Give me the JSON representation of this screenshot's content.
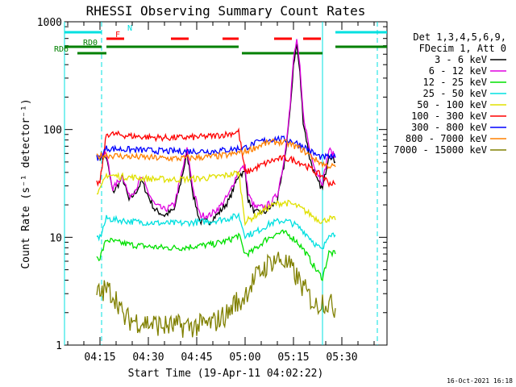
{
  "chart_data": {
    "type": "line",
    "title": "RHESSI Observing Summary Count Rates",
    "xlabel": "Start Time (19-Apr-11 04:02:22)",
    "ylabel": "Count Rate (s⁻¹ detector⁻¹)",
    "yscale": "log",
    "ylim": [
      1,
      1000
    ],
    "xlim_minutes": [
      4,
      104
    ],
    "x_ticks": [
      {
        "min": 15,
        "label": "04:15"
      },
      {
        "min": 30,
        "label": "04:30"
      },
      {
        "min": 45,
        "label": "04:45"
      },
      {
        "min": 60,
        "label": "05:00"
      },
      {
        "min": 75,
        "label": "05:15"
      },
      {
        "min": 90,
        "label": "05:30"
      }
    ],
    "y_ticks": [
      {
        "value": 1,
        "label": "1"
      },
      {
        "value": 10,
        "label": "10"
      },
      {
        "value": 100,
        "label": "100"
      },
      {
        "value": 1000,
        "label": "1000"
      }
    ],
    "legend_header": [
      "Det 1,3,4,5,6,9,",
      "FDecim 1, Att 0"
    ],
    "legend_position": "right",
    "timestamp": "16-Oct-2021 16:18",
    "series": [
      {
        "name": "3 - 6 keV",
        "color": "#000000",
        "x": [
          15,
          17,
          19,
          21,
          22,
          24,
          26,
          28,
          30,
          32,
          35,
          38,
          40,
          42,
          44,
          46,
          49,
          52,
          55,
          58,
          60,
          61,
          63,
          66,
          68,
          70,
          72,
          74,
          75,
          76,
          77,
          78,
          80,
          82,
          84,
          86,
          88
        ],
        "y": [
          55,
          55,
          26,
          32,
          36,
          22,
          26,
          33,
          24,
          18,
          16,
          18,
          32,
          60,
          24,
          14,
          14,
          17,
          22,
          38,
          40,
          22,
          17,
          17,
          19,
          22,
          45,
          150,
          400,
          620,
          330,
          120,
          55,
          35,
          28,
          60,
          50
        ]
      },
      {
        "name": "6 - 12 keV",
        "color": "#e000e0",
        "x": [
          15,
          17,
          19,
          21,
          22,
          24,
          26,
          28,
          30,
          32,
          35,
          38,
          40,
          42,
          44,
          46,
          49,
          52,
          55,
          58,
          60,
          61,
          63,
          66,
          68,
          70,
          72,
          74,
          75,
          76,
          77,
          78,
          80,
          82,
          84,
          86,
          88
        ],
        "y": [
          58,
          58,
          28,
          34,
          38,
          24,
          28,
          36,
          26,
          20,
          18,
          20,
          35,
          65,
          27,
          16,
          16,
          19,
          25,
          42,
          45,
          25,
          19,
          19,
          21,
          25,
          50,
          170,
          450,
          680,
          370,
          140,
          65,
          42,
          32,
          65,
          56
        ]
      },
      {
        "name": "12 - 25 keV",
        "color": "#00e000",
        "x": [
          14,
          15,
          17,
          20,
          25,
          30,
          35,
          40,
          45,
          50,
          55,
          58,
          60,
          62,
          64,
          66,
          68,
          70,
          72,
          74,
          76,
          78,
          80,
          82,
          84,
          86,
          88
        ],
        "y": [
          6.5,
          6.5,
          9.5,
          9,
          8.5,
          8.2,
          8,
          8,
          8.3,
          8.6,
          9.4,
          10.5,
          7,
          7.3,
          8.2,
          9.3,
          10.2,
          10.8,
          11,
          10.3,
          9.2,
          7.8,
          6.3,
          5,
          4.2,
          7.2,
          7
        ]
      },
      {
        "name": "25 - 50 keV",
        "color": "#00e0e0",
        "x": [
          14,
          15,
          17,
          20,
          25,
          30,
          35,
          40,
          45,
          50,
          55,
          58,
          60,
          62,
          64,
          66,
          68,
          70,
          72,
          74,
          76,
          78,
          80,
          82,
          84,
          86,
          88
        ],
        "y": [
          10,
          10,
          15,
          14.5,
          14,
          13.7,
          13.5,
          13.5,
          13.8,
          14.2,
          15,
          16,
          10.5,
          10.8,
          11.5,
          12.5,
          13.5,
          14,
          14.3,
          13.8,
          12.8,
          11.5,
          10,
          8.5,
          7.5,
          11,
          10.5
        ]
      },
      {
        "name": "50 - 100 keV",
        "color": "#e0e000",
        "x": [
          14,
          15,
          17,
          20,
          25,
          30,
          35,
          40,
          45,
          50,
          55,
          58,
          60,
          62,
          64,
          66,
          68,
          70,
          72,
          74,
          76,
          78,
          80,
          82,
          84,
          86,
          88
        ],
        "y": [
          27,
          27,
          38,
          37,
          36,
          35,
          34.5,
          34.5,
          35,
          36,
          38,
          40,
          14,
          15,
          16.5,
          18,
          19.5,
          20.5,
          21,
          20.5,
          19.5,
          18,
          16.5,
          15,
          14,
          15,
          14.5
        ]
      },
      {
        "name": "100 - 300 keV",
        "color": "#ff0000",
        "x": [
          14,
          15,
          17,
          20,
          25,
          30,
          35,
          40,
          45,
          50,
          55,
          58,
          60,
          62,
          64,
          66,
          68,
          70,
          72,
          74,
          76,
          78,
          80,
          82,
          84,
          86,
          88
        ],
        "y": [
          32,
          32,
          91,
          90,
          87,
          85,
          84,
          84,
          85,
          87,
          91,
          96,
          40,
          42,
          45,
          48,
          51,
          53,
          54,
          53,
          51,
          48,
          44,
          40,
          37,
          32,
          31
        ]
      },
      {
        "name": "300 - 800 keV",
        "color": "#0000ff",
        "x": [
          14,
          15,
          17,
          20,
          25,
          30,
          35,
          40,
          45,
          50,
          55,
          58,
          60,
          62,
          64,
          66,
          68,
          70,
          72,
          74,
          76,
          78,
          80,
          82,
          84,
          86,
          88
        ],
        "y": [
          55,
          55,
          67,
          66,
          65,
          64,
          63,
          63,
          63,
          63,
          65,
          67,
          68,
          72,
          76,
          79,
          81,
          82,
          81,
          79,
          75,
          70,
          64,
          58,
          55,
          56,
          55
        ]
      },
      {
        "name": "800 - 7000 keV",
        "color": "#ff8000",
        "x": [
          14,
          15,
          17,
          20,
          25,
          30,
          35,
          40,
          45,
          50,
          55,
          58,
          60,
          62,
          64,
          66,
          68,
          70,
          72,
          74,
          76,
          78,
          80,
          82,
          84,
          86,
          88
        ],
        "y": [
          57,
          57,
          58,
          57,
          56,
          55,
          54,
          54,
          55,
          56,
          58,
          61,
          62,
          66,
          70,
          74,
          76,
          77,
          76,
          73,
          69,
          64,
          58,
          52,
          48,
          46,
          45
        ]
      },
      {
        "name": "7000 - 15000 keV",
        "color": "#808000",
        "x": [
          14,
          15,
          17,
          19,
          21,
          22,
          25,
          30,
          35,
          40,
          45,
          50,
          55,
          57,
          58,
          60,
          62,
          64,
          66,
          68,
          70,
          72,
          74,
          76,
          78,
          80,
          82,
          84,
          86,
          88
        ],
        "y": [
          3,
          3,
          3.3,
          3,
          2.4,
          1.8,
          1.7,
          1.6,
          1.5,
          1.5,
          1.5,
          1.6,
          2,
          2.6,
          2.3,
          3,
          3.7,
          4.5,
          5.2,
          6,
          6.3,
          6,
          5.2,
          4.3,
          3.4,
          2.8,
          2.3,
          2.6,
          2.4,
          2.2
        ]
      }
    ],
    "flags": [
      {
        "name": "N",
        "color": "#00e0e0",
        "segments": [
          [
            4,
            15.5
          ],
          [
            88,
            104
          ]
        ]
      },
      {
        "name": "F",
        "color": "#ff0000",
        "segments": [
          [
            17,
            26
          ],
          [
            37,
            46
          ],
          [
            53,
            58
          ],
          [
            69,
            84
          ]
        ]
      },
      {
        "name": "RD0",
        "color": "#008000",
        "segments": [
          [
            4,
            15.5
          ],
          [
            17,
            58
          ],
          [
            88,
            104
          ]
        ]
      },
      {
        "name": "RD6",
        "color": "#008000",
        "segments": [
          [
            8,
            17
          ],
          [
            59,
            84
          ]
        ]
      }
    ],
    "boundaries": [
      {
        "min": 4,
        "color": "#00e0e0",
        "style": "solid"
      },
      {
        "min": 15.5,
        "color": "#00e0e0",
        "style": "dashed"
      },
      {
        "min": 84,
        "color": "#00e0e0",
        "style": "solid"
      },
      {
        "min": 101,
        "color": "#00e0e0",
        "style": "dashed"
      }
    ]
  }
}
